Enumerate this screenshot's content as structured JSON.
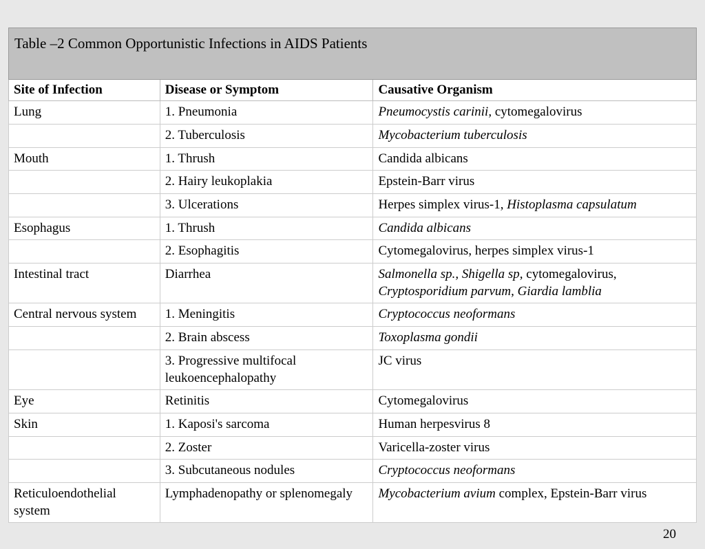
{
  "table": {
    "title": "Table –2 Common Opportunistic Infections in AIDS Patients",
    "title_bg": "#c0c0c0",
    "border_color": "#999999",
    "columns": [
      {
        "label": "Site of Infection",
        "width": "22%"
      },
      {
        "label": "Disease or Symptom",
        "width": "31%"
      },
      {
        "label": "Causative Organism",
        "width": "47%"
      }
    ],
    "font_family": "Times New Roman",
    "font_size_pt": 14,
    "rows": [
      {
        "site": "Lung",
        "disease": "1. Pneumonia",
        "organism_html": "<i>Pneumocystis carinii,</i> cytomegalovirus"
      },
      {
        "site": "",
        "disease": "2. Tuberculosis",
        "organism_html": "<i>Mycobacterium tuberculosis</i>"
      },
      {
        "site": "Mouth",
        "disease": "1. Thrush",
        "organism_html": "Candida albicans"
      },
      {
        "site": "",
        "disease": "2. Hairy leukoplakia",
        "organism_html": "Epstein-Barr virus"
      },
      {
        "site": "",
        "disease": "3. Ulcerations",
        "organism_html": "Herpes simplex virus-1, <i>Histoplasma capsulatum</i>"
      },
      {
        "site": "Esophagus",
        "disease": "1. Thrush",
        "organism_html": "<i>Candida albicans</i>"
      },
      {
        "site": "",
        "disease": "2. Esophagitis",
        "organism_html": "Cytomegalovirus, herpes simplex virus-1"
      },
      {
        "site": "Intestinal tract",
        "disease": "Diarrhea",
        "organism_html": "<i>Salmonella sp., Shigella sp,</i> cytomegalovirus, <i>Cryptosporidium parvum, Giardia lamblia</i>"
      },
      {
        "site": "Central nervous system",
        "disease": "1. Meningitis",
        "organism_html": "<i>Cryptococcus neoformans</i>"
      },
      {
        "site": "",
        "disease": "2. Brain abscess",
        "organism_html": "<i>Toxoplasma gondii</i>"
      },
      {
        "site": "",
        "disease": "3. Progressive multifocal leukoencephalopathy",
        "organism_html": "JC virus"
      },
      {
        "site": "Eye",
        "disease": "Retinitis",
        "organism_html": "Cytomegalovirus"
      },
      {
        "site": "Skin",
        "disease": "1. Kaposi's sarcoma",
        "organism_html": "Human herpesvirus 8"
      },
      {
        "site": "",
        "disease": "2. Zoster",
        "organism_html": "Varicella-zoster virus"
      },
      {
        "site": "",
        "disease": "3. Subcutaneous nodules",
        "organism_html": "<i>Cryptococcus neoformans</i>"
      },
      {
        "site": "Reticuloendothelial system",
        "disease": "Lymphadenopathy or splenomegaly",
        "organism_html": "<i>Mycobacterium avium</i> complex, Epstein-Barr virus"
      }
    ]
  },
  "page_number": "20",
  "background_color": "#e8e8e8"
}
